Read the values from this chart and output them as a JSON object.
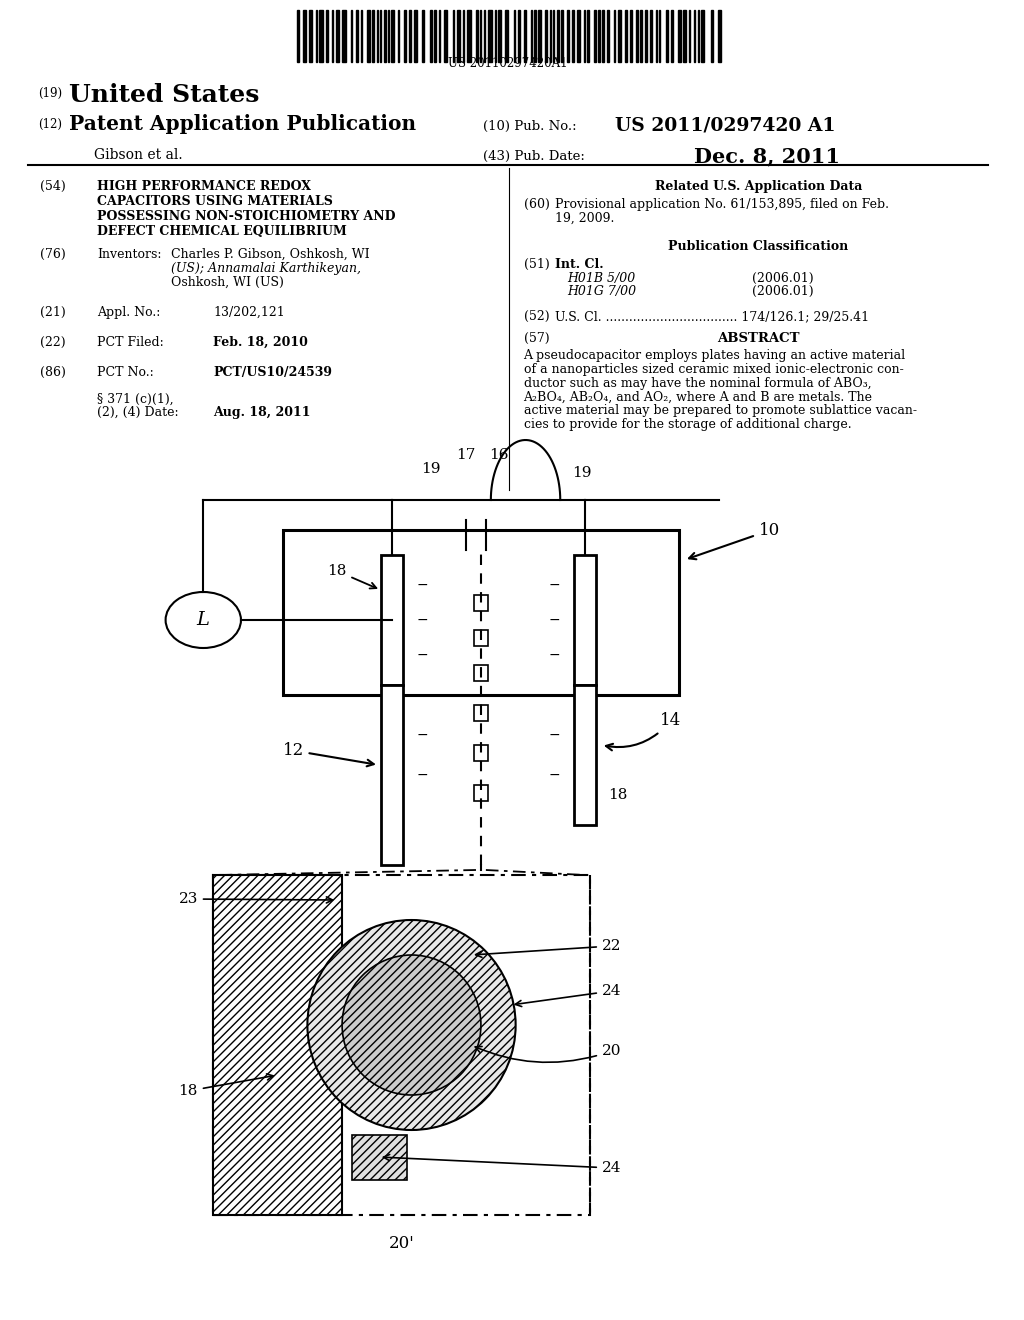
{
  "bg": "#ffffff",
  "barcode_text": "US 20110297420A1",
  "f54_title": [
    "HIGH PERFORMANCE REDOX",
    "CAPACITORS USING MATERIALS",
    "POSSESSING NON-STOICHIOMETRY AND",
    "DEFECT CHEMICAL EQUILIBRIUM"
  ],
  "f76_val": [
    "Charles P. Gibson, Oshkosh, WI",
    "(US); Annamalai Karthikeyan,",
    "Oshkosh, WI (US)"
  ],
  "f21_val": "13/202,121",
  "f22_val": "Feb. 18, 2010",
  "f86_val": "PCT/US10/24539",
  "f86b_val": "Aug. 18, 2011",
  "f60_text": [
    "Provisional application No. 61/153,895, filed on Feb.",
    "19, 2009."
  ],
  "f51_a": "H01B 5/00",
  "f51_a_date": "(2006.01)",
  "f51_b": "H01G 7/00",
  "f51_b_date": "(2006.01)",
  "f52_text": "U.S. Cl. .................................. 174/126.1; 29/25.41",
  "f57_text": [
    "A pseudocapacitor employs plates having an active material",
    "of a nanoparticles sized ceramic mixed ionic-electronic con-",
    "ductor such as may have the nominal formula of ABO₃,",
    "A₂BO₄, AB₂O₄, and AO₂, where A and B are metals. The",
    "active material may be prepared to promote sublattice vacan-",
    "cies to provide for the storage of additional charge."
  ]
}
